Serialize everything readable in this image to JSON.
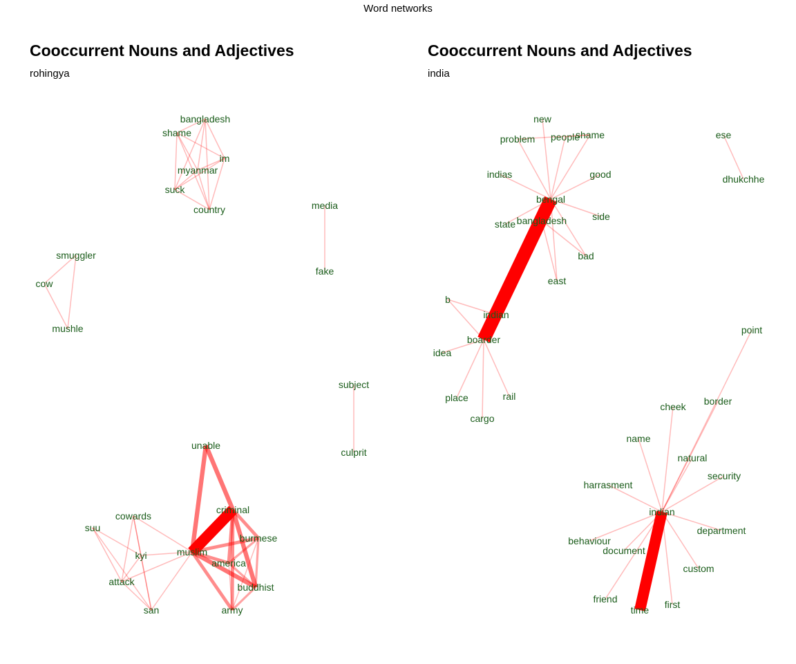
{
  "main_title": "Word networks",
  "panels": [
    {
      "title": "Cooccurrent Nouns and Adjectives",
      "subtitle": "rohingya",
      "nodes": [
        {
          "id": "bangladesh",
          "label": "bangladesh"
        },
        {
          "id": "shame",
          "label": "shame"
        },
        {
          "id": "im",
          "label": "im"
        },
        {
          "id": "myanmar",
          "label": "myanmar"
        },
        {
          "id": "suck",
          "label": "suck"
        },
        {
          "id": "country",
          "label": "country"
        },
        {
          "id": "media",
          "label": "media"
        },
        {
          "id": "fake",
          "label": "fake"
        },
        {
          "id": "smuggler",
          "label": "smuggler"
        },
        {
          "id": "cow",
          "label": "cow"
        },
        {
          "id": "mushle",
          "label": "mushle"
        },
        {
          "id": "subject",
          "label": "subject"
        },
        {
          "id": "culprit",
          "label": "culprit"
        },
        {
          "id": "unable",
          "label": "unable"
        },
        {
          "id": "criminal",
          "label": "criminal"
        },
        {
          "id": "cowards",
          "label": "cowards"
        },
        {
          "id": "suu",
          "label": "suu"
        },
        {
          "id": "burmese",
          "label": "burmese"
        },
        {
          "id": "muslim",
          "label": "muslim"
        },
        {
          "id": "kyi",
          "label": "kyi"
        },
        {
          "id": "america",
          "label": "america"
        },
        {
          "id": "attack",
          "label": "attack"
        },
        {
          "id": "buddhist",
          "label": "buddhist"
        },
        {
          "id": "san",
          "label": "san"
        },
        {
          "id": "army",
          "label": "army"
        }
      ],
      "edges": [
        {
          "from": "bangladesh",
          "to": "shame",
          "weight": 1
        },
        {
          "from": "bangladesh",
          "to": "im",
          "weight": 1
        },
        {
          "from": "bangladesh",
          "to": "myanmar",
          "weight": 1
        },
        {
          "from": "bangladesh",
          "to": "suck",
          "weight": 1
        },
        {
          "from": "bangladesh",
          "to": "country",
          "weight": 1
        },
        {
          "from": "shame",
          "to": "myanmar",
          "weight": 1
        },
        {
          "from": "shame",
          "to": "suck",
          "weight": 1
        },
        {
          "from": "shame",
          "to": "country",
          "weight": 1
        },
        {
          "from": "shame",
          "to": "im",
          "weight": 1
        },
        {
          "from": "im",
          "to": "myanmar",
          "weight": 1
        },
        {
          "from": "im",
          "to": "suck",
          "weight": 1
        },
        {
          "from": "im",
          "to": "country",
          "weight": 1
        },
        {
          "from": "myanmar",
          "to": "suck",
          "weight": 1
        },
        {
          "from": "myanmar",
          "to": "country",
          "weight": 1
        },
        {
          "from": "suck",
          "to": "country",
          "weight": 1
        },
        {
          "from": "media",
          "to": "fake",
          "weight": 1
        },
        {
          "from": "smuggler",
          "to": "cow",
          "weight": 1
        },
        {
          "from": "smuggler",
          "to": "mushle",
          "weight": 1
        },
        {
          "from": "cow",
          "to": "mushle",
          "weight": 1
        },
        {
          "from": "subject",
          "to": "culprit",
          "weight": 1
        },
        {
          "from": "muslim",
          "to": "criminal",
          "weight": 10
        },
        {
          "from": "muslim",
          "to": "unable",
          "weight": 4
        },
        {
          "from": "unable",
          "to": "criminal",
          "weight": 4
        },
        {
          "from": "muslim",
          "to": "burmese",
          "weight": 3
        },
        {
          "from": "muslim",
          "to": "america",
          "weight": 3
        },
        {
          "from": "muslim",
          "to": "buddhist",
          "weight": 4
        },
        {
          "from": "muslim",
          "to": "army",
          "weight": 3
        },
        {
          "from": "criminal",
          "to": "burmese",
          "weight": 3
        },
        {
          "from": "criminal",
          "to": "america",
          "weight": 3
        },
        {
          "from": "criminal",
          "to": "buddhist",
          "weight": 4
        },
        {
          "from": "criminal",
          "to": "army",
          "weight": 3
        },
        {
          "from": "burmese",
          "to": "america",
          "weight": 2
        },
        {
          "from": "burmese",
          "to": "buddhist",
          "weight": 2
        },
        {
          "from": "america",
          "to": "buddhist",
          "weight": 2
        },
        {
          "from": "buddhist",
          "to": "army",
          "weight": 2
        },
        {
          "from": "burmese",
          "to": "army",
          "weight": 1
        },
        {
          "from": "america",
          "to": "army",
          "weight": 1
        },
        {
          "from": "muslim",
          "to": "cowards",
          "weight": 1
        },
        {
          "from": "muslim",
          "to": "kyi",
          "weight": 1
        },
        {
          "from": "muslim",
          "to": "attack",
          "weight": 1
        },
        {
          "from": "muslim",
          "to": "san",
          "weight": 1
        },
        {
          "from": "suu",
          "to": "kyi",
          "weight": 1
        },
        {
          "from": "suu",
          "to": "attack",
          "weight": 1
        },
        {
          "from": "suu",
          "to": "san",
          "weight": 1
        },
        {
          "from": "kyi",
          "to": "attack",
          "weight": 1
        },
        {
          "from": "kyi",
          "to": "san",
          "weight": 1
        },
        {
          "from": "cowards",
          "to": "attack",
          "weight": 1
        },
        {
          "from": "cowards",
          "to": "kyi",
          "weight": 1
        },
        {
          "from": "cowards",
          "to": "san",
          "weight": 1
        },
        {
          "from": "attack",
          "to": "san",
          "weight": 1
        }
      ]
    },
    {
      "title": "Cooccurrent Nouns and Adjectives",
      "subtitle": "india",
      "nodes": [
        {
          "id": "new",
          "label": "new"
        },
        {
          "id": "problem",
          "label": "problem"
        },
        {
          "id": "people",
          "label": "people"
        },
        {
          "id": "shame",
          "label": "shame"
        },
        {
          "id": "indias",
          "label": "indias"
        },
        {
          "id": "good",
          "label": "good"
        },
        {
          "id": "bengal",
          "label": "bengal"
        },
        {
          "id": "state",
          "label": "state"
        },
        {
          "id": "bangladesh",
          "label": "bangladesh"
        },
        {
          "id": "side",
          "label": "side"
        },
        {
          "id": "bad",
          "label": "bad"
        },
        {
          "id": "east",
          "label": "east"
        },
        {
          "id": "b",
          "label": "b"
        },
        {
          "id": "indian",
          "label": "indian"
        },
        {
          "id": "boarder",
          "label": "boarder"
        },
        {
          "id": "idea",
          "label": "idea"
        },
        {
          "id": "place",
          "label": "place"
        },
        {
          "id": "rail",
          "label": "rail"
        },
        {
          "id": "cargo",
          "label": "cargo"
        },
        {
          "id": "ese",
          "label": "ese"
        },
        {
          "id": "dhukchhe",
          "label": "dhukchhe"
        },
        {
          "id": "point",
          "label": "point"
        },
        {
          "id": "cheek",
          "label": "cheek"
        },
        {
          "id": "border",
          "label": "border"
        },
        {
          "id": "name",
          "label": "name"
        },
        {
          "id": "natural",
          "label": "natural"
        },
        {
          "id": "security",
          "label": "security"
        },
        {
          "id": "harrasment",
          "label": "harrasment"
        },
        {
          "id": "indian2",
          "label": "indian"
        },
        {
          "id": "department",
          "label": "department"
        },
        {
          "id": "behaviour",
          "label": "behaviour"
        },
        {
          "id": "document",
          "label": "document"
        },
        {
          "id": "custom",
          "label": "custom"
        },
        {
          "id": "friend",
          "label": "friend"
        },
        {
          "id": "time",
          "label": "time"
        },
        {
          "id": "first",
          "label": "first"
        }
      ],
      "edges": [
        {
          "from": "bengal",
          "to": "boarder",
          "weight": 12
        },
        {
          "from": "bengal",
          "to": "new",
          "weight": 1
        },
        {
          "from": "bengal",
          "to": "problem",
          "weight": 1
        },
        {
          "from": "bengal",
          "to": "people",
          "weight": 1
        },
        {
          "from": "bengal",
          "to": "shame",
          "weight": 1
        },
        {
          "from": "bengal",
          "to": "indias",
          "weight": 1
        },
        {
          "from": "bengal",
          "to": "good",
          "weight": 1
        },
        {
          "from": "bengal",
          "to": "state",
          "weight": 1
        },
        {
          "from": "bengal",
          "to": "bangladesh",
          "weight": 1
        },
        {
          "from": "bengal",
          "to": "side",
          "weight": 1
        },
        {
          "from": "bengal",
          "to": "bad",
          "weight": 1
        },
        {
          "from": "bengal",
          "to": "east",
          "weight": 1
        },
        {
          "from": "people",
          "to": "shame",
          "weight": 1
        },
        {
          "from": "problem",
          "to": "shame",
          "weight": 1
        },
        {
          "from": "bangladesh",
          "to": "bad",
          "weight": 1
        },
        {
          "from": "bangladesh",
          "to": "east",
          "weight": 1
        },
        {
          "from": "boarder",
          "to": "b",
          "weight": 1
        },
        {
          "from": "boarder",
          "to": "indian",
          "weight": 1
        },
        {
          "from": "boarder",
          "to": "idea",
          "weight": 1
        },
        {
          "from": "boarder",
          "to": "place",
          "weight": 1
        },
        {
          "from": "boarder",
          "to": "rail",
          "weight": 1
        },
        {
          "from": "boarder",
          "to": "cargo",
          "weight": 1
        },
        {
          "from": "b",
          "to": "indian",
          "weight": 1
        },
        {
          "from": "ese",
          "to": "dhukchhe",
          "weight": 1
        },
        {
          "from": "indian2",
          "to": "time",
          "weight": 10
        },
        {
          "from": "indian2",
          "to": "point",
          "weight": 1
        },
        {
          "from": "indian2",
          "to": "cheek",
          "weight": 1
        },
        {
          "from": "indian2",
          "to": "border",
          "weight": 1
        },
        {
          "from": "indian2",
          "to": "name",
          "weight": 1
        },
        {
          "from": "indian2",
          "to": "natural",
          "weight": 1
        },
        {
          "from": "indian2",
          "to": "security",
          "weight": 1
        },
        {
          "from": "indian2",
          "to": "harrasment",
          "weight": 1
        },
        {
          "from": "indian2",
          "to": "department",
          "weight": 1
        },
        {
          "from": "indian2",
          "to": "behaviour",
          "weight": 1
        },
        {
          "from": "indian2",
          "to": "document",
          "weight": 1
        },
        {
          "from": "indian2",
          "to": "custom",
          "weight": 1
        },
        {
          "from": "indian2",
          "to": "friend",
          "weight": 1
        },
        {
          "from": "indian2",
          "to": "first",
          "weight": 1
        }
      ]
    }
  ]
}
